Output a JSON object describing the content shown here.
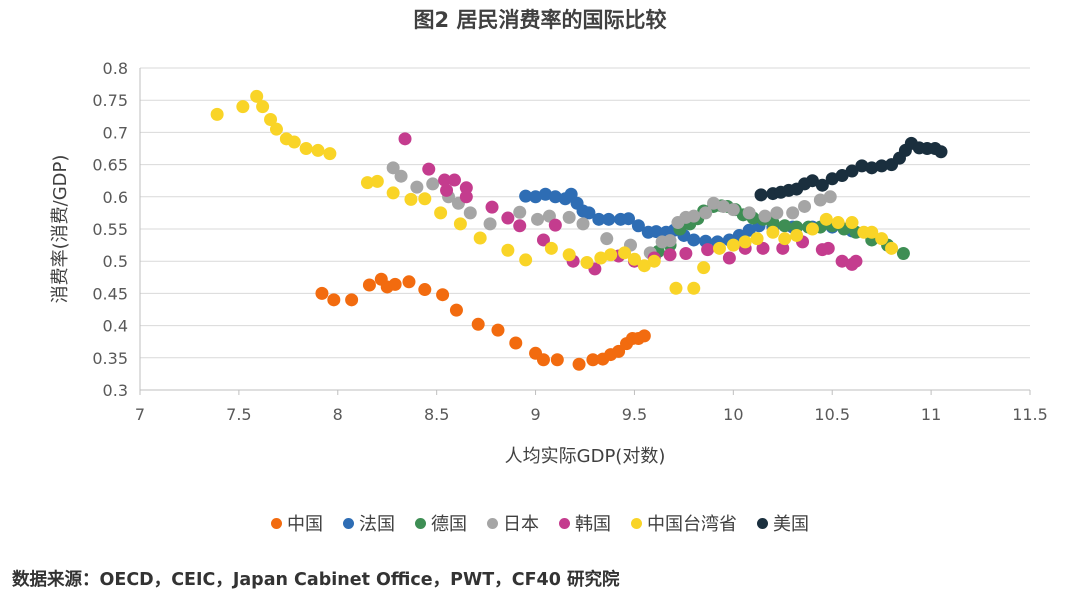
{
  "chart_data": {
    "type": "scatter",
    "title": "图2 居民消费率的国际比较",
    "xlabel": "人均实际GDP(对数)",
    "ylabel": "消费率(消费/GDP)",
    "xlim": [
      7,
      11.5
    ],
    "ylim": [
      0.3,
      0.8
    ],
    "x_ticks": [
      "7",
      "7.5",
      "8",
      "8.5",
      "9",
      "9.5",
      "10",
      "10.5",
      "11",
      "11.5"
    ],
    "y_ticks": [
      "0.3",
      "0.35",
      "0.4",
      "0.45",
      "0.5",
      "0.55",
      "0.6",
      "0.65",
      "0.7",
      "0.75",
      "0.8"
    ],
    "grid": "horizontal",
    "legend_position": "bottom",
    "series": [
      {
        "name": "中国",
        "color": "#f26b0f",
        "points": [
          [
            7.92,
            0.45
          ],
          [
            7.98,
            0.44
          ],
          [
            8.07,
            0.44
          ],
          [
            8.16,
            0.463
          ],
          [
            8.22,
            0.472
          ],
          [
            8.25,
            0.46
          ],
          [
            8.29,
            0.464
          ],
          [
            8.36,
            0.468
          ],
          [
            8.44,
            0.456
          ],
          [
            8.53,
            0.448
          ],
          [
            8.6,
            0.424
          ],
          [
            8.71,
            0.402
          ],
          [
            8.81,
            0.393
          ],
          [
            8.9,
            0.373
          ],
          [
            9.0,
            0.357
          ],
          [
            9.04,
            0.347
          ],
          [
            9.11,
            0.347
          ],
          [
            9.22,
            0.34
          ],
          [
            9.29,
            0.347
          ],
          [
            9.34,
            0.348
          ],
          [
            9.38,
            0.355
          ],
          [
            9.42,
            0.36
          ],
          [
            9.46,
            0.372
          ],
          [
            9.49,
            0.38
          ],
          [
            9.52,
            0.38
          ],
          [
            9.55,
            0.384
          ]
        ]
      },
      {
        "name": "法国",
        "color": "#2e6db4",
        "points": [
          [
            8.95,
            0.601
          ],
          [
            9.0,
            0.6
          ],
          [
            9.05,
            0.604
          ],
          [
            9.1,
            0.6
          ],
          [
            9.15,
            0.597
          ],
          [
            9.18,
            0.604
          ],
          [
            9.21,
            0.59
          ],
          [
            9.24,
            0.578
          ],
          [
            9.27,
            0.575
          ],
          [
            9.32,
            0.565
          ],
          [
            9.37,
            0.565
          ],
          [
            9.43,
            0.565
          ],
          [
            9.47,
            0.566
          ],
          [
            9.52,
            0.555
          ],
          [
            9.57,
            0.545
          ],
          [
            9.61,
            0.546
          ],
          [
            9.66,
            0.545
          ],
          [
            9.7,
            0.548
          ],
          [
            9.75,
            0.54
          ],
          [
            9.8,
            0.533
          ],
          [
            9.86,
            0.531
          ],
          [
            9.92,
            0.53
          ],
          [
            9.98,
            0.533
          ],
          [
            10.03,
            0.54
          ],
          [
            10.08,
            0.548
          ],
          [
            10.13,
            0.555
          ],
          [
            10.2,
            0.553
          ],
          [
            10.3,
            0.553
          ],
          [
            10.4,
            0.553
          ],
          [
            10.5,
            0.553
          ],
          [
            10.6,
            0.547
          ]
        ]
      },
      {
        "name": "德国",
        "color": "#3e8e54",
        "points": [
          [
            9.62,
            0.515
          ],
          [
            9.68,
            0.525
          ],
          [
            9.73,
            0.55
          ],
          [
            9.78,
            0.558
          ],
          [
            9.82,
            0.566
          ],
          [
            9.85,
            0.578
          ],
          [
            9.9,
            0.585
          ],
          [
            9.94,
            0.586
          ],
          [
            9.97,
            0.585
          ],
          [
            10.01,
            0.58
          ],
          [
            10.05,
            0.572
          ],
          [
            10.1,
            0.567
          ],
          [
            10.15,
            0.565
          ],
          [
            10.2,
            0.56
          ],
          [
            10.26,
            0.555
          ],
          [
            10.32,
            0.553
          ],
          [
            10.38,
            0.553
          ],
          [
            10.44,
            0.553
          ],
          [
            10.5,
            0.555
          ],
          [
            10.56,
            0.55
          ],
          [
            10.62,
            0.545
          ],
          [
            10.7,
            0.533
          ],
          [
            10.78,
            0.525
          ],
          [
            10.86,
            0.512
          ]
        ]
      },
      {
        "name": "日本",
        "color": "#a5a5a5",
        "points": [
          [
            8.28,
            0.645
          ],
          [
            8.32,
            0.632
          ],
          [
            8.4,
            0.615
          ],
          [
            8.48,
            0.62
          ],
          [
            8.56,
            0.6
          ],
          [
            8.61,
            0.59
          ],
          [
            8.67,
            0.575
          ],
          [
            8.77,
            0.558
          ],
          [
            8.92,
            0.576
          ],
          [
            9.01,
            0.565
          ],
          [
            9.07,
            0.57
          ],
          [
            9.17,
            0.568
          ],
          [
            9.24,
            0.558
          ],
          [
            9.36,
            0.535
          ],
          [
            9.48,
            0.525
          ],
          [
            9.58,
            0.513
          ],
          [
            9.64,
            0.53
          ],
          [
            9.68,
            0.532
          ],
          [
            9.72,
            0.56
          ],
          [
            9.76,
            0.568
          ],
          [
            9.8,
            0.57
          ],
          [
            9.86,
            0.575
          ],
          [
            9.9,
            0.59
          ],
          [
            9.95,
            0.585
          ],
          [
            10.0,
            0.58
          ],
          [
            10.08,
            0.575
          ],
          [
            10.16,
            0.57
          ],
          [
            10.22,
            0.575
          ],
          [
            10.3,
            0.575
          ],
          [
            10.36,
            0.585
          ],
          [
            10.44,
            0.595
          ],
          [
            10.49,
            0.6
          ]
        ]
      },
      {
        "name": "韩国",
        "color": "#c43c8e",
        "points": [
          [
            8.34,
            0.69
          ],
          [
            8.46,
            0.643
          ],
          [
            8.54,
            0.626
          ],
          [
            8.59,
            0.626
          ],
          [
            8.55,
            0.61
          ],
          [
            8.65,
            0.614
          ],
          [
            8.65,
            0.6
          ],
          [
            8.78,
            0.584
          ],
          [
            8.86,
            0.567
          ],
          [
            8.92,
            0.555
          ],
          [
            9.04,
            0.533
          ],
          [
            9.1,
            0.556
          ],
          [
            9.19,
            0.5
          ],
          [
            9.3,
            0.488
          ],
          [
            9.42,
            0.508
          ],
          [
            9.5,
            0.5
          ],
          [
            9.6,
            0.505
          ],
          [
            9.68,
            0.51
          ],
          [
            9.76,
            0.512
          ],
          [
            9.87,
            0.518
          ],
          [
            9.98,
            0.505
          ],
          [
            10.06,
            0.52
          ],
          [
            10.15,
            0.52
          ],
          [
            10.25,
            0.52
          ],
          [
            10.35,
            0.53
          ],
          [
            10.45,
            0.518
          ],
          [
            10.55,
            0.5
          ],
          [
            10.6,
            0.495
          ],
          [
            10.62,
            0.5
          ],
          [
            10.48,
            0.52
          ]
        ]
      },
      {
        "name": "中国台湾省",
        "color": "#f9d427",
        "points": [
          [
            7.39,
            0.728
          ],
          [
            7.52,
            0.74
          ],
          [
            7.59,
            0.756
          ],
          [
            7.62,
            0.74
          ],
          [
            7.66,
            0.72
          ],
          [
            7.69,
            0.705
          ],
          [
            7.74,
            0.69
          ],
          [
            7.78,
            0.685
          ],
          [
            7.84,
            0.675
          ],
          [
            7.9,
            0.672
          ],
          [
            7.96,
            0.667
          ],
          [
            8.15,
            0.622
          ],
          [
            8.2,
            0.624
          ],
          [
            8.28,
            0.606
          ],
          [
            8.37,
            0.596
          ],
          [
            8.44,
            0.597
          ],
          [
            8.52,
            0.575
          ],
          [
            8.62,
            0.558
          ],
          [
            8.72,
            0.536
          ],
          [
            8.86,
            0.517
          ],
          [
            8.95,
            0.502
          ],
          [
            9.08,
            0.52
          ],
          [
            9.17,
            0.51
          ],
          [
            9.26,
            0.498
          ],
          [
            9.33,
            0.505
          ],
          [
            9.38,
            0.51
          ],
          [
            9.45,
            0.513
          ],
          [
            9.5,
            0.503
          ],
          [
            9.55,
            0.493
          ],
          [
            9.6,
            0.5
          ],
          [
            9.71,
            0.458
          ],
          [
            9.8,
            0.458
          ],
          [
            9.85,
            0.49
          ],
          [
            9.93,
            0.52
          ],
          [
            10.0,
            0.525
          ],
          [
            10.06,
            0.53
          ],
          [
            10.12,
            0.535
          ],
          [
            10.2,
            0.545
          ],
          [
            10.26,
            0.535
          ],
          [
            10.32,
            0.54
          ],
          [
            10.4,
            0.55
          ],
          [
            10.47,
            0.565
          ],
          [
            10.53,
            0.56
          ],
          [
            10.6,
            0.56
          ],
          [
            10.66,
            0.545
          ],
          [
            10.7,
            0.545
          ],
          [
            10.75,
            0.535
          ],
          [
            10.8,
            0.52
          ]
        ]
      },
      {
        "name": "美国",
        "color": "#1a2f3e",
        "points": [
          [
            10.14,
            0.603
          ],
          [
            10.2,
            0.605
          ],
          [
            10.24,
            0.607
          ],
          [
            10.28,
            0.61
          ],
          [
            10.32,
            0.612
          ],
          [
            10.36,
            0.62
          ],
          [
            10.4,
            0.625
          ],
          [
            10.45,
            0.618
          ],
          [
            10.5,
            0.628
          ],
          [
            10.55,
            0.633
          ],
          [
            10.6,
            0.64
          ],
          [
            10.65,
            0.648
          ],
          [
            10.7,
            0.645
          ],
          [
            10.75,
            0.648
          ],
          [
            10.8,
            0.65
          ],
          [
            10.84,
            0.66
          ],
          [
            10.87,
            0.672
          ],
          [
            10.9,
            0.683
          ],
          [
            10.94,
            0.676
          ],
          [
            10.98,
            0.675
          ],
          [
            11.02,
            0.675
          ],
          [
            11.05,
            0.67
          ]
        ]
      }
    ]
  },
  "source_note": "数据来源：OECD，CEIC，Japan Cabinet Office，PWT，CF40 研究院"
}
